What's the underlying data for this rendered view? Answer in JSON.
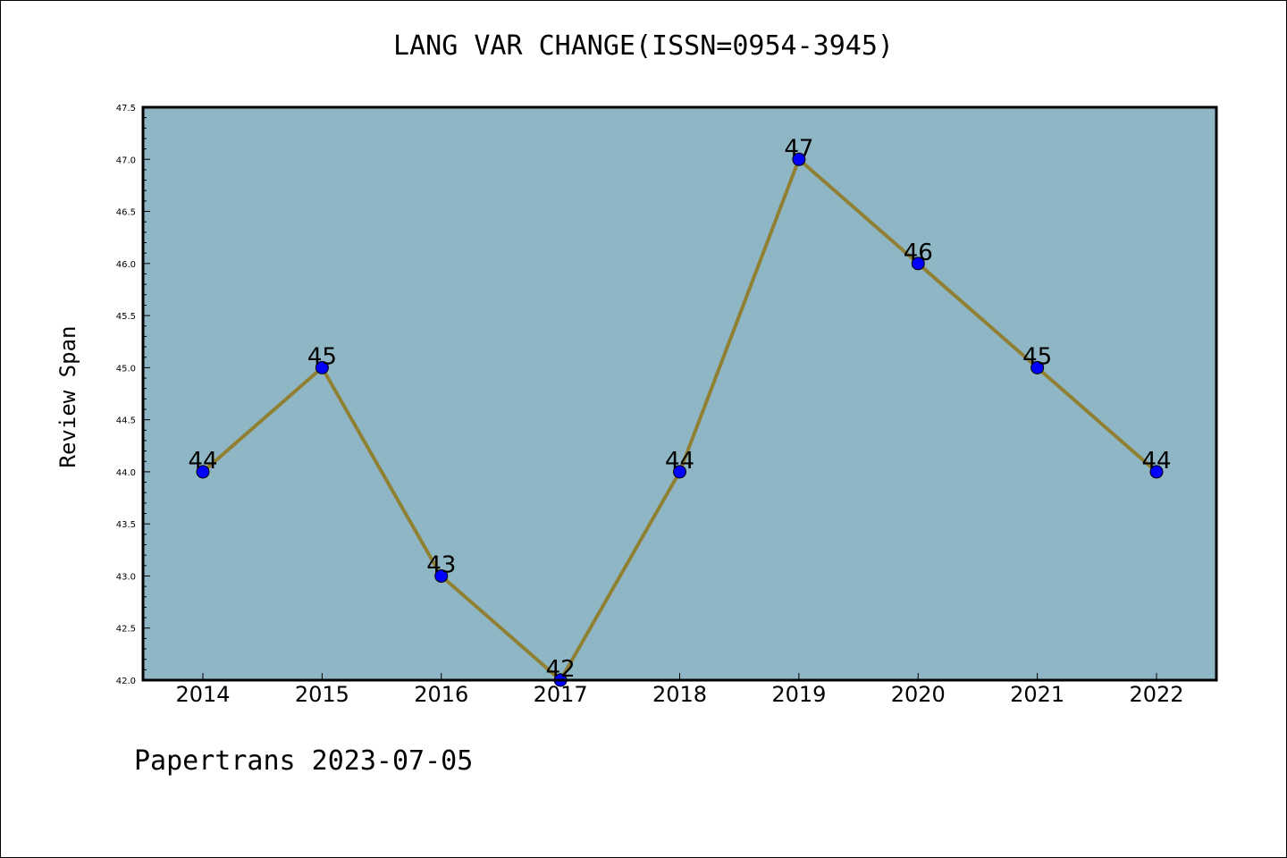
{
  "chart_data": {
    "type": "line",
    "title": "LANG VAR CHANGE(ISSN=0954-3945)",
    "xlabel": "",
    "ylabel": "Review Span",
    "x": [
      "2014",
      "2015",
      "2016",
      "2017",
      "2018",
      "2019",
      "2020",
      "2021",
      "2022"
    ],
    "series": [
      {
        "values": [
          44,
          45,
          43,
          42,
          44,
          47,
          46,
          45,
          44
        ]
      }
    ],
    "ylim": [
      42.0,
      47.5
    ],
    "yticks": [
      "42.0",
      "42.5",
      "43.0",
      "43.5",
      "44.0",
      "44.5",
      "45.0",
      "45.5",
      "46.0",
      "46.5",
      "47.0",
      "47.5"
    ],
    "grid": false,
    "colors": {
      "plot_background": "#8fb6c5",
      "line": "#8f8033",
      "marker": "#0000ff"
    }
  },
  "footer": "Papertrans 2023-07-05"
}
